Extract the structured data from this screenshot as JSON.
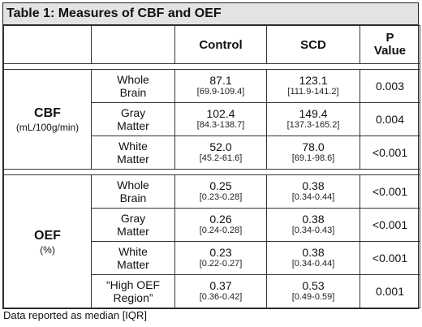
{
  "title": "Table 1: Measures of CBF and OEF",
  "columns": {
    "control": "Control",
    "scd": "SCD",
    "p_value_line1": "P",
    "p_value_line2": "Value"
  },
  "groups": [
    {
      "name": "CBF",
      "unit": "(mL/100g/min)",
      "rows": [
        {
          "region_line1": "Whole",
          "region_line2": "Brain",
          "control": "87.1",
          "control_range": "[69.9-109.4]",
          "scd": "123.1",
          "scd_range": "[111.9-141.2]",
          "p": "0.003"
        },
        {
          "region_line1": "Gray",
          "region_line2": "Matter",
          "control": "102.4",
          "control_range": "[84.3-138.7]",
          "scd": "149.4",
          "scd_range": "[137.3-165.2]",
          "p": "0.004"
        },
        {
          "region_line1": "White",
          "region_line2": "Matter",
          "control": "52.0",
          "control_range": "[45.2-61.6]",
          "scd": "78.0",
          "scd_range": "[69.1-98.6]",
          "p": "<0.001"
        }
      ]
    },
    {
      "name": "OEF",
      "unit": "(%)",
      "rows": [
        {
          "region_line1": "Whole",
          "region_line2": "Brain",
          "control": "0.25",
          "control_range": "[0.23-0.28]",
          "scd": "0.38",
          "scd_range": "[0.34-0.44]",
          "p": "<0.001"
        },
        {
          "region_line1": "Gray",
          "region_line2": "Matter",
          "control": "0.26",
          "control_range": "[0.24-0.28]",
          "scd": "0.38",
          "scd_range": "[0.34-0.43]",
          "p": "<0.001"
        },
        {
          "region_line1": "White",
          "region_line2": "Matter",
          "control": "0.23",
          "control_range": "[0.22-0.27]",
          "scd": "0.38",
          "scd_range": "[0.34-0.44]",
          "p": "<0.001"
        },
        {
          "region_line1": "“High OEF",
          "region_line2": "Region”",
          "control": "0.37",
          "control_range": "[0.36-0.42]",
          "scd": "0.53",
          "scd_range": "[0.49-0.59]",
          "p": "0.001"
        }
      ]
    }
  ],
  "footnote": "Data reported as median [IQR]"
}
